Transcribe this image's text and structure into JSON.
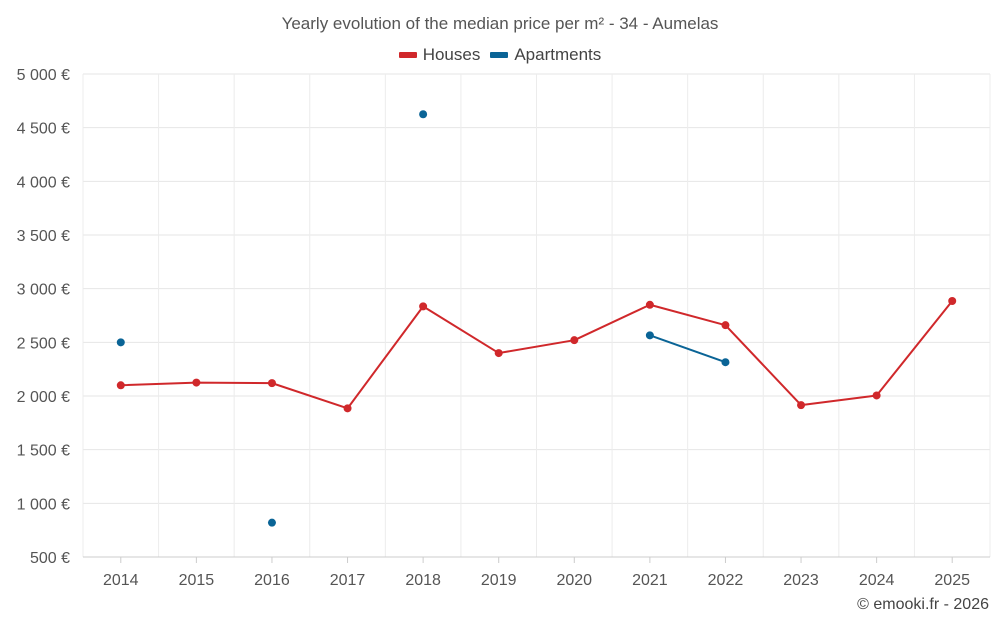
{
  "chart_data": {
    "type": "line",
    "title": "Yearly evolution of the median price per m² - 34 - Aumelas",
    "xlabel": "",
    "ylabel": "",
    "categories": [
      "2014",
      "2015",
      "2016",
      "2017",
      "2018",
      "2019",
      "2020",
      "2021",
      "2022",
      "2023",
      "2024",
      "2025"
    ],
    "ylim": [
      500,
      5000
    ],
    "yticks": [
      500,
      1000,
      1500,
      2000,
      2500,
      3000,
      3500,
      4000,
      4500,
      5000
    ],
    "ytick_labels": [
      "500 €",
      "1 000 €",
      "1 500 €",
      "2 000 €",
      "2 500 €",
      "3 000 €",
      "3 500 €",
      "4 000 €",
      "4 500 €",
      "5 000 €"
    ],
    "grid": true,
    "legend_position": "top-center",
    "series": [
      {
        "name": "Houses",
        "color": "#d0282b",
        "values": [
          2100,
          2125,
          2120,
          1885,
          2835,
          2400,
          2520,
          2850,
          2660,
          1915,
          2005,
          2885
        ]
      },
      {
        "name": "Apartments",
        "color": "#0a6496",
        "values": [
          2500,
          null,
          820,
          null,
          4625,
          null,
          null,
          2565,
          2315,
          null,
          null,
          null
        ]
      }
    ]
  },
  "credit": "© emooki.fr - 2026"
}
